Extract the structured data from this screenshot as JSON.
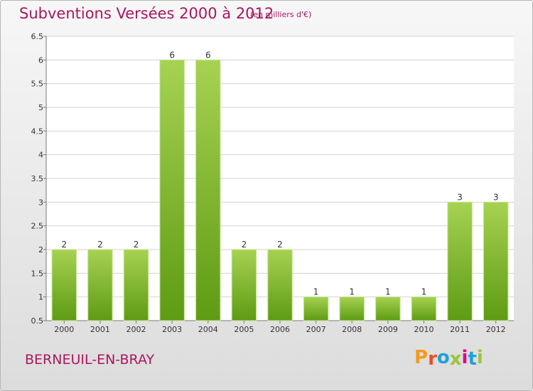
{
  "title": "Subventions Versées 2000 à 2012",
  "subtitle": "(en milliers d'€)",
  "commune": "BERNEUIL-EN-BRAY",
  "logo": {
    "letters": [
      "P",
      "r",
      "o",
      "x",
      "i",
      "t",
      "i"
    ],
    "colors": [
      "#f39a1c",
      "#e94e24",
      "#1da1dc",
      "#9ac43c",
      "#e6007e",
      "#1da1dc",
      "#9ac43c"
    ]
  },
  "colors": {
    "bar_top": "#a6d252",
    "bar_bottom": "#5e9b13",
    "grid": "#d2d2d2",
    "axis": "#777777",
    "text": "#333333"
  },
  "chart_data": {
    "type": "bar",
    "categories": [
      "2000",
      "2001",
      "2002",
      "2003",
      "2004",
      "2005",
      "2006",
      "2007",
      "2008",
      "2009",
      "2010",
      "2011",
      "2012"
    ],
    "values": [
      2,
      2,
      2,
      6,
      6,
      2,
      2,
      1,
      1,
      1,
      1,
      3,
      3
    ],
    "data_labels": [
      "2",
      "2",
      "2",
      "6",
      "6",
      "2",
      "2",
      "1",
      "1",
      "1",
      "1",
      "3",
      "3"
    ],
    "ylim": [
      0.5,
      6.5
    ],
    "yticks": [
      "0.5",
      "1",
      "1.5",
      "2",
      "2.5",
      "3",
      "3.5",
      "4",
      "4.5",
      "5",
      "5.5",
      "6",
      "6.5"
    ],
    "grid": true
  }
}
